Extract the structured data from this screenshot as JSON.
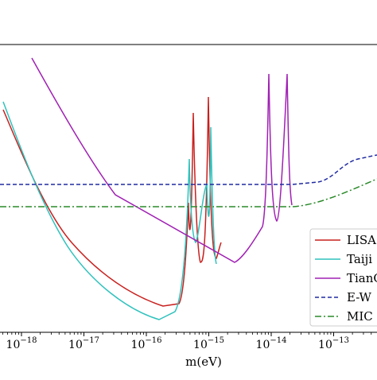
{
  "chart_data": {
    "type": "line",
    "xlabel": "m(eV)",
    "xscale": "log",
    "yscale": "log",
    "xlim": [
      3e-19,
      8e-13
    ],
    "ylim": [
      0,
      1
    ],
    "grid": false,
    "legend_position": "lower-right",
    "xticks": [
      {
        "value": 1e-18,
        "base": "10",
        "exp": "−18"
      },
      {
        "value": 1e-17,
        "base": "10",
        "exp": "−17"
      },
      {
        "value": 1e-16,
        "base": "10",
        "exp": "−16"
      },
      {
        "value": 1e-15,
        "base": "10",
        "exp": "−15"
      },
      {
        "value": 1e-14,
        "base": "10",
        "exp": "−14"
      },
      {
        "value": 1e-13,
        "base": "10",
        "exp": "−13"
      }
    ],
    "series": [
      {
        "name": "LISA",
        "color": "#c8201e",
        "style": "solid"
      },
      {
        "name": "Taiji",
        "color": "#2fc2bd",
        "style": "solid"
      },
      {
        "name": "TianQin",
        "color": "#a020b4",
        "style": "solid"
      },
      {
        "name": "E-W",
        "color": "#1f2aa0",
        "style": "dashed"
      },
      {
        "name": "MIC",
        "color": "#2a8a2a",
        "style": "dashdot"
      }
    ]
  }
}
